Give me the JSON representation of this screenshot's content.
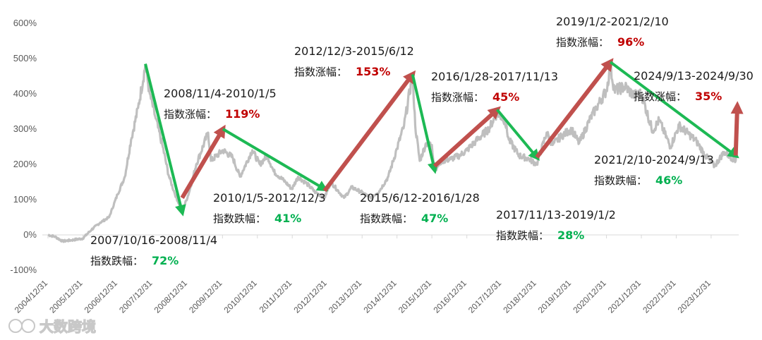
{
  "chart_data": {
    "type": "line",
    "title": "",
    "xlabel": "",
    "ylabel": "",
    "ylim": [
      -100,
      600
    ],
    "y_ticks": [
      "-100%",
      "0%",
      "100%",
      "200%",
      "300%",
      "400%",
      "500%",
      "600%"
    ],
    "x_ticks": [
      "2004/12/31",
      "2005/12/31",
      "2006/12/31",
      "2007/12/31",
      "2008/12/31",
      "2009/12/31",
      "2010/12/31",
      "2011/12/31",
      "2012/12/31",
      "2013/12/31",
      "2014/12/31",
      "2015/12/31",
      "2016/12/31",
      "2017/12/31",
      "2018/12/31",
      "2019/12/31",
      "2020/12/31",
      "2021/12/31",
      "2022/12/31",
      "2023/12/31"
    ],
    "grid": false,
    "series": [
      {
        "color": "#bfbfbf",
        "points": [
          [
            "2004-12-31",
            0
          ],
          [
            "2005-03-15",
            -5
          ],
          [
            "2005-06-01",
            -18
          ],
          [
            "2005-09-01",
            -15
          ],
          [
            "2005-12-30",
            -10
          ],
          [
            "2006-04-01",
            15
          ],
          [
            "2006-07-01",
            35
          ],
          [
            "2006-10-01",
            50
          ],
          [
            "2006-12-29",
            115
          ],
          [
            "2007-03-15",
            165
          ],
          [
            "2007-05-20",
            270
          ],
          [
            "2007-08-01",
            360
          ],
          [
            "2007-10-16",
            480
          ],
          [
            "2007-12-01",
            400
          ],
          [
            "2008-02-01",
            330
          ],
          [
            "2008-04-15",
            250
          ],
          [
            "2008-06-15",
            170
          ],
          [
            "2008-08-15",
            120
          ],
          [
            "2008-11-04",
            65
          ],
          [
            "2009-01-15",
            120
          ],
          [
            "2009-04-01",
            200
          ],
          [
            "2009-08-03",
            290
          ],
          [
            "2009-09-01",
            210
          ],
          [
            "2010-01-05",
            240
          ],
          [
            "2010-04-15",
            220
          ],
          [
            "2010-07-02",
            165
          ],
          [
            "2010-11-08",
            240
          ],
          [
            "2011-01-25",
            200
          ],
          [
            "2011-04-15",
            225
          ],
          [
            "2011-06-20",
            180
          ],
          [
            "2011-10-20",
            150
          ],
          [
            "2011-12-28",
            130
          ],
          [
            "2012-03-01",
            165
          ],
          [
            "2012-06-01",
            145
          ],
          [
            "2012-09-01",
            120
          ],
          [
            "2012-12-03",
            105
          ],
          [
            "2013-02-06",
            150
          ],
          [
            "2013-06-25",
            105
          ],
          [
            "2013-09-15",
            135
          ],
          [
            "2013-12-31",
            120
          ],
          [
            "2014-04-01",
            105
          ],
          [
            "2014-07-01",
            125
          ],
          [
            "2014-10-01",
            165
          ],
          [
            "2014-12-31",
            245
          ],
          [
            "2015-03-15",
            310
          ],
          [
            "2015-06-12",
            455
          ],
          [
            "2015-07-10",
            310
          ],
          [
            "2015-08-26",
            210
          ],
          [
            "2015-11-01",
            260
          ],
          [
            "2015-12-31",
            255
          ],
          [
            "2016-01-28",
            185
          ],
          [
            "2016-04-15",
            210
          ],
          [
            "2016-07-15",
            215
          ],
          [
            "2016-10-15",
            225
          ],
          [
            "2016-12-31",
            240
          ],
          [
            "2017-04-01",
            265
          ],
          [
            "2017-08-15",
            300
          ],
          [
            "2017-11-13",
            345
          ],
          [
            "2018-02-01",
            325
          ],
          [
            "2018-03-15",
            270
          ],
          [
            "2018-07-01",
            225
          ],
          [
            "2018-10-15",
            215
          ],
          [
            "2019-01-02",
            200
          ],
          [
            "2019-04-15",
            290
          ],
          [
            "2019-06-15",
            255
          ],
          [
            "2019-09-15",
            280
          ],
          [
            "2019-12-31",
            300
          ],
          [
            "2020-03-20",
            260
          ],
          [
            "2020-07-15",
            330
          ],
          [
            "2020-09-15",
            360
          ],
          [
            "2020-12-31",
            410
          ],
          [
            "2021-02-10",
            475
          ],
          [
            "2021-03-25",
            410
          ],
          [
            "2021-07-15",
            420
          ],
          [
            "2021-10-15",
            395
          ],
          [
            "2021-12-31",
            400
          ],
          [
            "2022-04-27",
            295
          ],
          [
            "2022-07-05",
            325
          ],
          [
            "2022-10-31",
            250
          ],
          [
            "2023-01-30",
            310
          ],
          [
            "2023-05-15",
            285
          ],
          [
            "2023-08-01",
            265
          ],
          [
            "2023-10-31",
            225
          ],
          [
            "2024-02-05",
            195
          ],
          [
            "2024-05-15",
            235
          ],
          [
            "2024-09-13",
            210
          ],
          [
            "2024-09-30",
            290
          ]
        ]
      }
    ],
    "annotations": [
      {
        "direction": "down",
        "from": "2007-10-16",
        "to": "2008-11-04",
        "y_from": 485,
        "y_to": 65,
        "range": "2007/10/16-2008/11/4",
        "label": "指数跌幅：",
        "value": "72%"
      },
      {
        "direction": "up",
        "from": "2008-11-04",
        "to": "2010-01-05",
        "y_from": 105,
        "y_to": 300,
        "range": "2008/11/4-2010/1/5",
        "label": "指数涨幅：",
        "value": "119%"
      },
      {
        "direction": "down",
        "from": "2010-01-05",
        "to": "2012-12-03",
        "y_from": 300,
        "y_to": 130,
        "range": "2010/1/5-2012/12/3",
        "label": "指数跌幅：",
        "value": "41%"
      },
      {
        "direction": "up",
        "from": "2012-12-03",
        "to": "2015-06-12",
        "y_from": 125,
        "y_to": 455,
        "range": "2012/12/3-2015/6/12",
        "label": "指数涨幅：",
        "value": "153%"
      },
      {
        "direction": "down",
        "from": "2015-06-12",
        "to": "2016-01-28",
        "y_from": 455,
        "y_to": 185,
        "range": "2015/6/12-2016/1/28",
        "label": "指数跌幅：",
        "value": "47%"
      },
      {
        "direction": "up",
        "from": "2016-01-28",
        "to": "2017-11-13",
        "y_from": 195,
        "y_to": 355,
        "range": "2016/1/28-2017/11/13",
        "label": "指数涨幅：",
        "value": "45%"
      },
      {
        "direction": "down",
        "from": "2017-11-13",
        "to": "2019-01-02",
        "y_from": 355,
        "y_to": 220,
        "range": "2017/11/13-2019/1/2",
        "label": "指数跌幅：",
        "value": "28%"
      },
      {
        "direction": "up",
        "from": "2019-01-02",
        "to": "2021-02-10",
        "y_from": 220,
        "y_to": 490,
        "range": "2019/1/2-2021/2/10",
        "label": "指数涨幅：",
        "value": "96%"
      },
      {
        "direction": "down",
        "from": "2021-02-10",
        "to": "2024-09-13",
        "y_from": 490,
        "y_to": 225,
        "range": "2021/2/10-2024/9/13",
        "label": "指数跌幅：",
        "value": "46%"
      },
      {
        "direction": "up",
        "from": "2024-09-13",
        "to": "2024-09-30",
        "y_from": 225,
        "y_to": 365,
        "range": "2024/9/13-2024/9/30",
        "label": "指数涨幅：",
        "value": "35%"
      }
    ],
    "colors": {
      "up": "#c0504d",
      "down": "#1db954",
      "up_text": "#c00000",
      "down_text": "#00b050",
      "line": "#bfbfbf"
    }
  },
  "watermark": {
    "text": "大数跨境",
    "icon": "logo-icon"
  }
}
